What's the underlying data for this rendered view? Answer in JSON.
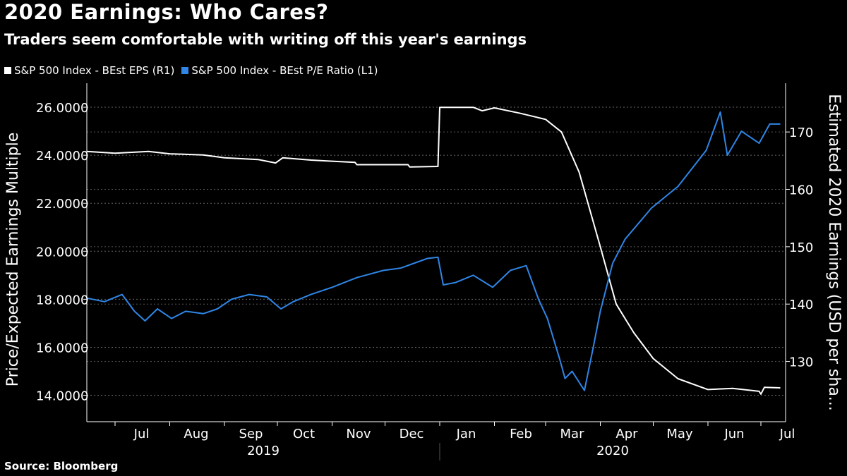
{
  "header": {
    "title": "2020 Earnings: Who Cares?",
    "subtitle": "Traders seem comfortable with writing off this year's earnings"
  },
  "legend": [
    {
      "label": "S&P 500 Index - BEst EPS (R1)",
      "color": "#ffffff"
    },
    {
      "label": "S&P 500 Index - BEst P/E Ratio (L1)",
      "color": "#2f86e6"
    }
  ],
  "footer": {
    "source": "Source: Bloomberg"
  },
  "chart_data": {
    "type": "line",
    "x_tick_labels": [
      "Jul",
      "Aug",
      "Sep",
      "Oct",
      "Nov",
      "Dec",
      "Jan",
      "Feb",
      "Mar",
      "Apr",
      "May",
      "Jun",
      "Jul"
    ],
    "x_year_labels": [
      "2019",
      "2020"
    ],
    "xlim": [
      "2019-06-15",
      "2020-07-15"
    ],
    "y_left": {
      "label": "Price/Expected Earnings Multiple",
      "ticks": [
        "14.0000",
        "16.0000",
        "18.0000",
        "20.0000",
        "22.0000",
        "24.0000",
        "26.0000"
      ],
      "ylim": [
        12.9,
        27.0
      ]
    },
    "y_right": {
      "label": "Estimated 2020 Earnings (USD per sha...",
      "ticks": [
        "130",
        "140",
        "150",
        "160",
        "170"
      ],
      "ylim": [
        119.5,
        178.5
      ]
    },
    "grid": true,
    "series": [
      {
        "name": "S&P 500 Index - BEst EPS (R1)",
        "axis": "right",
        "color": "#ffffff",
        "points": [
          [
            "2019-06-15",
            166.6
          ],
          [
            "2019-07-01",
            166.3
          ],
          [
            "2019-07-20",
            166.6
          ],
          [
            "2019-08-01",
            166.2
          ],
          [
            "2019-08-20",
            166.0
          ],
          [
            "2019-09-01",
            165.5
          ],
          [
            "2019-09-20",
            165.2
          ],
          [
            "2019-09-30",
            164.6
          ],
          [
            "2019-10-04",
            165.5
          ],
          [
            "2019-10-20",
            165.1
          ],
          [
            "2019-11-01",
            164.9
          ],
          [
            "2019-11-14",
            164.7
          ],
          [
            "2019-11-15",
            164.3
          ],
          [
            "2019-12-01",
            164.3
          ],
          [
            "2019-12-14",
            164.3
          ],
          [
            "2019-12-15",
            163.9
          ],
          [
            "2019-12-31",
            164.0
          ],
          [
            "2020-01-01",
            174.3
          ],
          [
            "2020-01-20",
            174.3
          ],
          [
            "2020-01-25",
            173.7
          ],
          [
            "2020-02-01",
            174.2
          ],
          [
            "2020-02-15",
            173.3
          ],
          [
            "2020-03-01",
            172.2
          ],
          [
            "2020-03-10",
            170.0
          ],
          [
            "2020-03-20",
            163.0
          ],
          [
            "2020-04-01",
            150.0
          ],
          [
            "2020-04-10",
            140.0
          ],
          [
            "2020-04-20",
            135.0
          ],
          [
            "2020-05-01",
            130.5
          ],
          [
            "2020-05-15",
            127.0
          ],
          [
            "2020-06-01",
            125.1
          ],
          [
            "2020-06-15",
            125.3
          ],
          [
            "2020-06-30",
            124.8
          ],
          [
            "2020-07-01",
            124.3
          ],
          [
            "2020-07-03",
            125.5
          ],
          [
            "2020-07-12",
            125.4
          ]
        ]
      },
      {
        "name": "S&P 500 Index - BEst P/E Ratio (L1)",
        "axis": "left",
        "color": "#2f86e6",
        "points": [
          [
            "2019-06-15",
            18.05
          ],
          [
            "2019-06-25",
            17.9
          ],
          [
            "2019-07-05",
            18.2
          ],
          [
            "2019-07-12",
            17.5
          ],
          [
            "2019-07-18",
            17.1
          ],
          [
            "2019-07-25",
            17.6
          ],
          [
            "2019-08-02",
            17.2
          ],
          [
            "2019-08-10",
            17.5
          ],
          [
            "2019-08-20",
            17.4
          ],
          [
            "2019-08-28",
            17.6
          ],
          [
            "2019-09-05",
            18.0
          ],
          [
            "2019-09-15",
            18.2
          ],
          [
            "2019-09-25",
            18.1
          ],
          [
            "2019-10-03",
            17.6
          ],
          [
            "2019-10-10",
            17.9
          ],
          [
            "2019-10-20",
            18.2
          ],
          [
            "2019-11-01",
            18.5
          ],
          [
            "2019-11-15",
            18.9
          ],
          [
            "2019-11-30",
            19.2
          ],
          [
            "2019-12-10",
            19.3
          ],
          [
            "2019-12-25",
            19.7
          ],
          [
            "2019-12-31",
            19.75
          ],
          [
            "2020-01-03",
            18.6
          ],
          [
            "2020-01-10",
            18.7
          ],
          [
            "2020-01-20",
            19.0
          ],
          [
            "2020-01-31",
            18.5
          ],
          [
            "2020-02-10",
            19.2
          ],
          [
            "2020-02-19",
            19.4
          ],
          [
            "2020-02-26",
            18.0
          ],
          [
            "2020-03-02",
            17.2
          ],
          [
            "2020-03-09",
            15.5
          ],
          [
            "2020-03-12",
            14.7
          ],
          [
            "2020-03-16",
            15.0
          ],
          [
            "2020-03-23",
            14.2
          ],
          [
            "2020-03-28",
            16.0
          ],
          [
            "2020-04-01",
            17.5
          ],
          [
            "2020-04-08",
            19.5
          ],
          [
            "2020-04-15",
            20.5
          ],
          [
            "2020-04-30",
            21.8
          ],
          [
            "2020-05-15",
            22.7
          ],
          [
            "2020-05-31",
            24.2
          ],
          [
            "2020-06-08",
            25.8
          ],
          [
            "2020-06-12",
            24.0
          ],
          [
            "2020-06-20",
            25.0
          ],
          [
            "2020-06-30",
            24.5
          ],
          [
            "2020-07-06",
            25.3
          ],
          [
            "2020-07-12",
            25.3
          ]
        ]
      }
    ]
  }
}
